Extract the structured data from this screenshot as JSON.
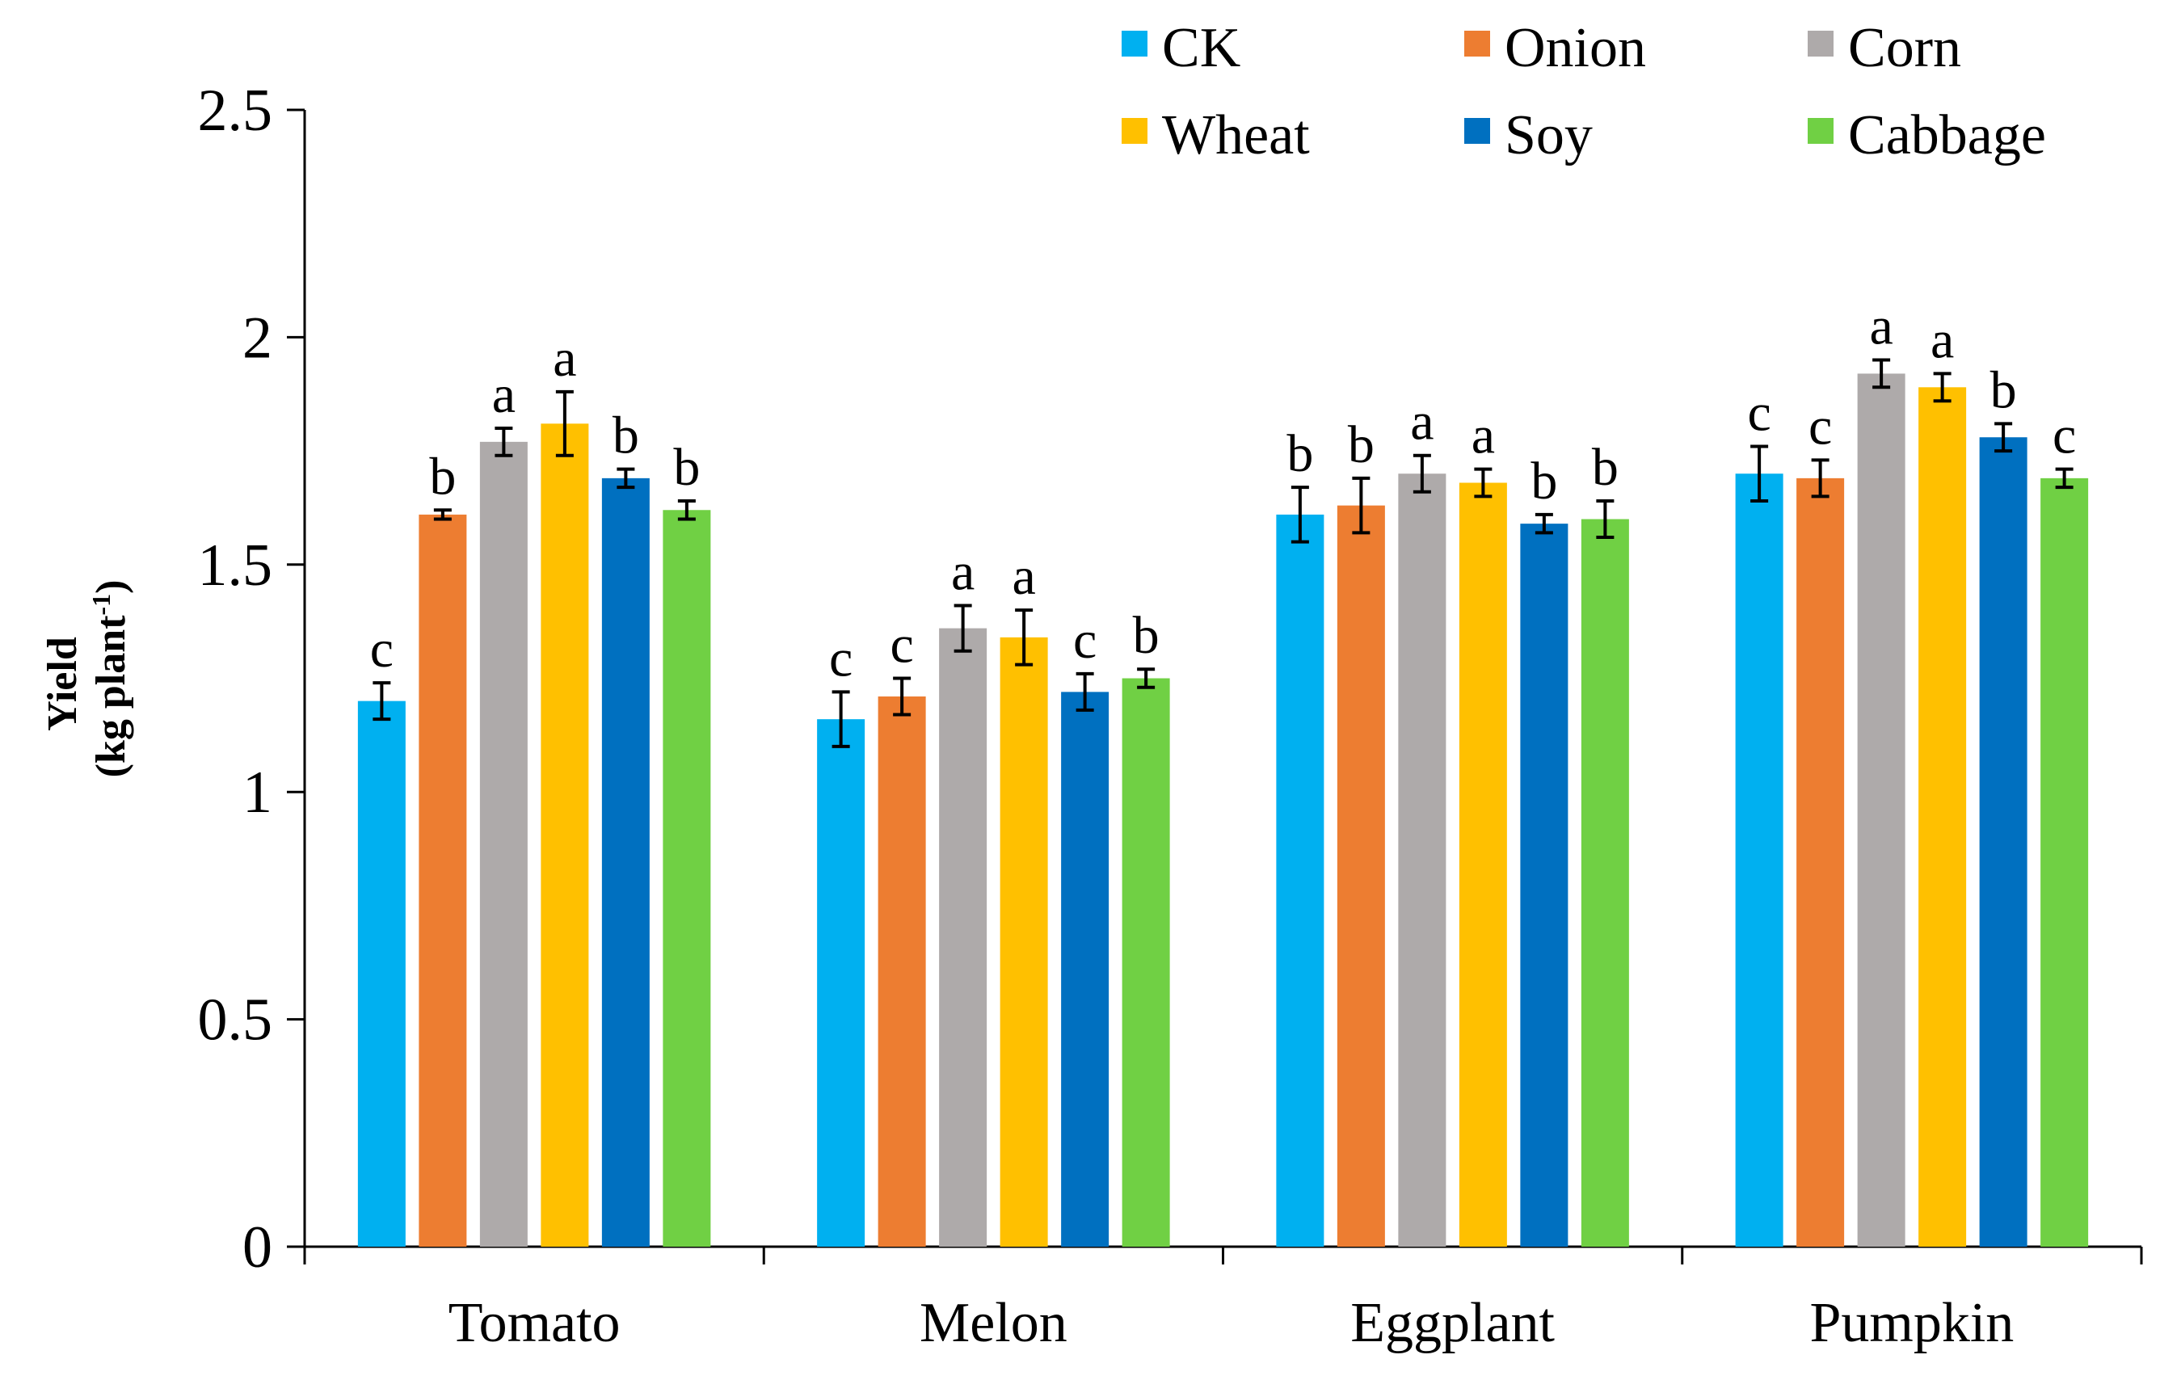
{
  "chart_data": {
    "type": "bar",
    "title": "",
    "xlabel": "",
    "ylabel": "Yield",
    "ylabel_unit_main": "(kg plant",
    "ylabel_unit_sup": "-1",
    "ylabel_unit_end": ")",
    "ylim": [
      0,
      2.5
    ],
    "yticks": [
      0,
      0.5,
      1,
      1.5,
      2,
      2.5
    ],
    "ytick_labels": [
      "0",
      "0.5",
      "1",
      "1.5",
      "2",
      "2.5"
    ],
    "grid": false,
    "legend_position": "top-right",
    "categories": [
      "Tomato",
      "Melon",
      "Eggplant",
      "Pumpkin"
    ],
    "series": [
      {
        "name": "CK",
        "color": "#00B0F0",
        "values": [
          1.2,
          1.16,
          1.61,
          1.7
        ],
        "errors": [
          0.04,
          0.06,
          0.06,
          0.06
        ],
        "letters": [
          "c",
          "c",
          "b",
          "c"
        ]
      },
      {
        "name": "Onion",
        "color": "#ED7D31",
        "values": [
          1.61,
          1.21,
          1.63,
          1.69
        ],
        "errors": [
          0.01,
          0.04,
          0.06,
          0.04
        ],
        "letters": [
          "b",
          "c",
          "b",
          "c"
        ]
      },
      {
        "name": "Corn",
        "color": "#AEAAAA",
        "values": [
          1.77,
          1.36,
          1.7,
          1.92
        ],
        "errors": [
          0.03,
          0.05,
          0.04,
          0.03
        ],
        "letters": [
          "a",
          "a",
          "a",
          "a"
        ]
      },
      {
        "name": "Wheat",
        "color": "#FFC000",
        "values": [
          1.81,
          1.34,
          1.68,
          1.89
        ],
        "errors": [
          0.07,
          0.06,
          0.03,
          0.03
        ],
        "letters": [
          "a",
          "a",
          "a",
          "a"
        ]
      },
      {
        "name": "Soy",
        "color": "#0070C0",
        "values": [
          1.69,
          1.22,
          1.59,
          1.78
        ],
        "errors": [
          0.02,
          0.04,
          0.02,
          0.03
        ],
        "letters": [
          "b",
          "c",
          "b",
          "b"
        ]
      },
      {
        "name": "Cabbage",
        "color": "#70D044",
        "values": [
          1.62,
          1.25,
          1.6,
          1.69
        ],
        "errors": [
          0.02,
          0.02,
          0.04,
          0.02
        ],
        "letters": [
          "b",
          "b",
          "b",
          "c"
        ]
      }
    ]
  }
}
